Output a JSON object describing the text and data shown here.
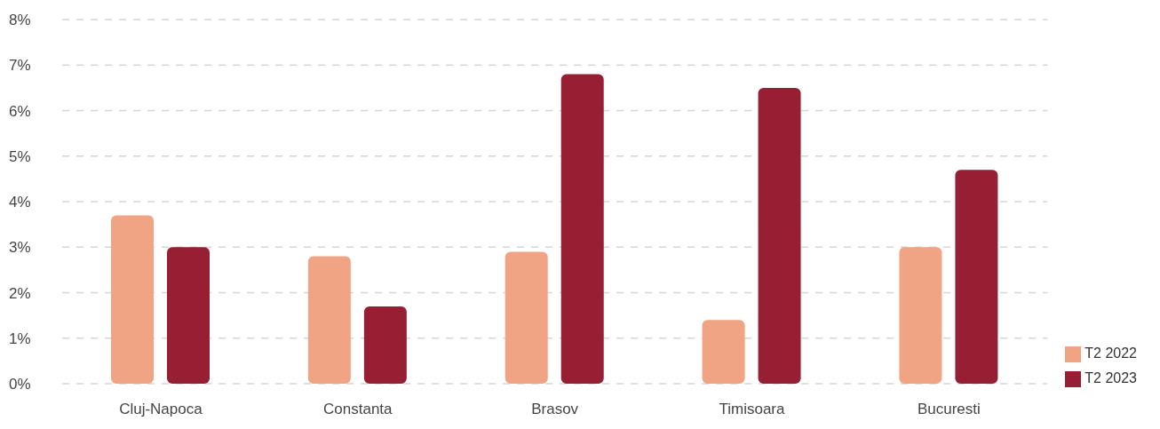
{
  "chart_data": {
    "type": "bar",
    "categories": [
      "Cluj-Napoca",
      "Constanta",
      "Brasov",
      "Timisoara",
      "Bucuresti"
    ],
    "series": [
      {
        "name": "T2 2022",
        "color": "#f0a484",
        "values": [
          3.7,
          2.8,
          2.9,
          1.4,
          3.0
        ]
      },
      {
        "name": "T2 2023",
        "color": "#971f33",
        "values": [
          3.0,
          1.7,
          6.8,
          6.5,
          4.7
        ]
      }
    ],
    "ylim": [
      0,
      8
    ],
    "yticks": [
      {
        "value": 0,
        "label": "0%"
      },
      {
        "value": 1,
        "label": "1%"
      },
      {
        "value": 2,
        "label": "2%"
      },
      {
        "value": 3,
        "label": "3%"
      },
      {
        "value": 4,
        "label": "4%"
      },
      {
        "value": 5,
        "label": "5%"
      },
      {
        "value": 6,
        "label": "6%"
      },
      {
        "value": 7,
        "label": "7%"
      },
      {
        "value": 8,
        "label": "8%"
      }
    ],
    "grid": "y",
    "legend": "bottom right"
  }
}
